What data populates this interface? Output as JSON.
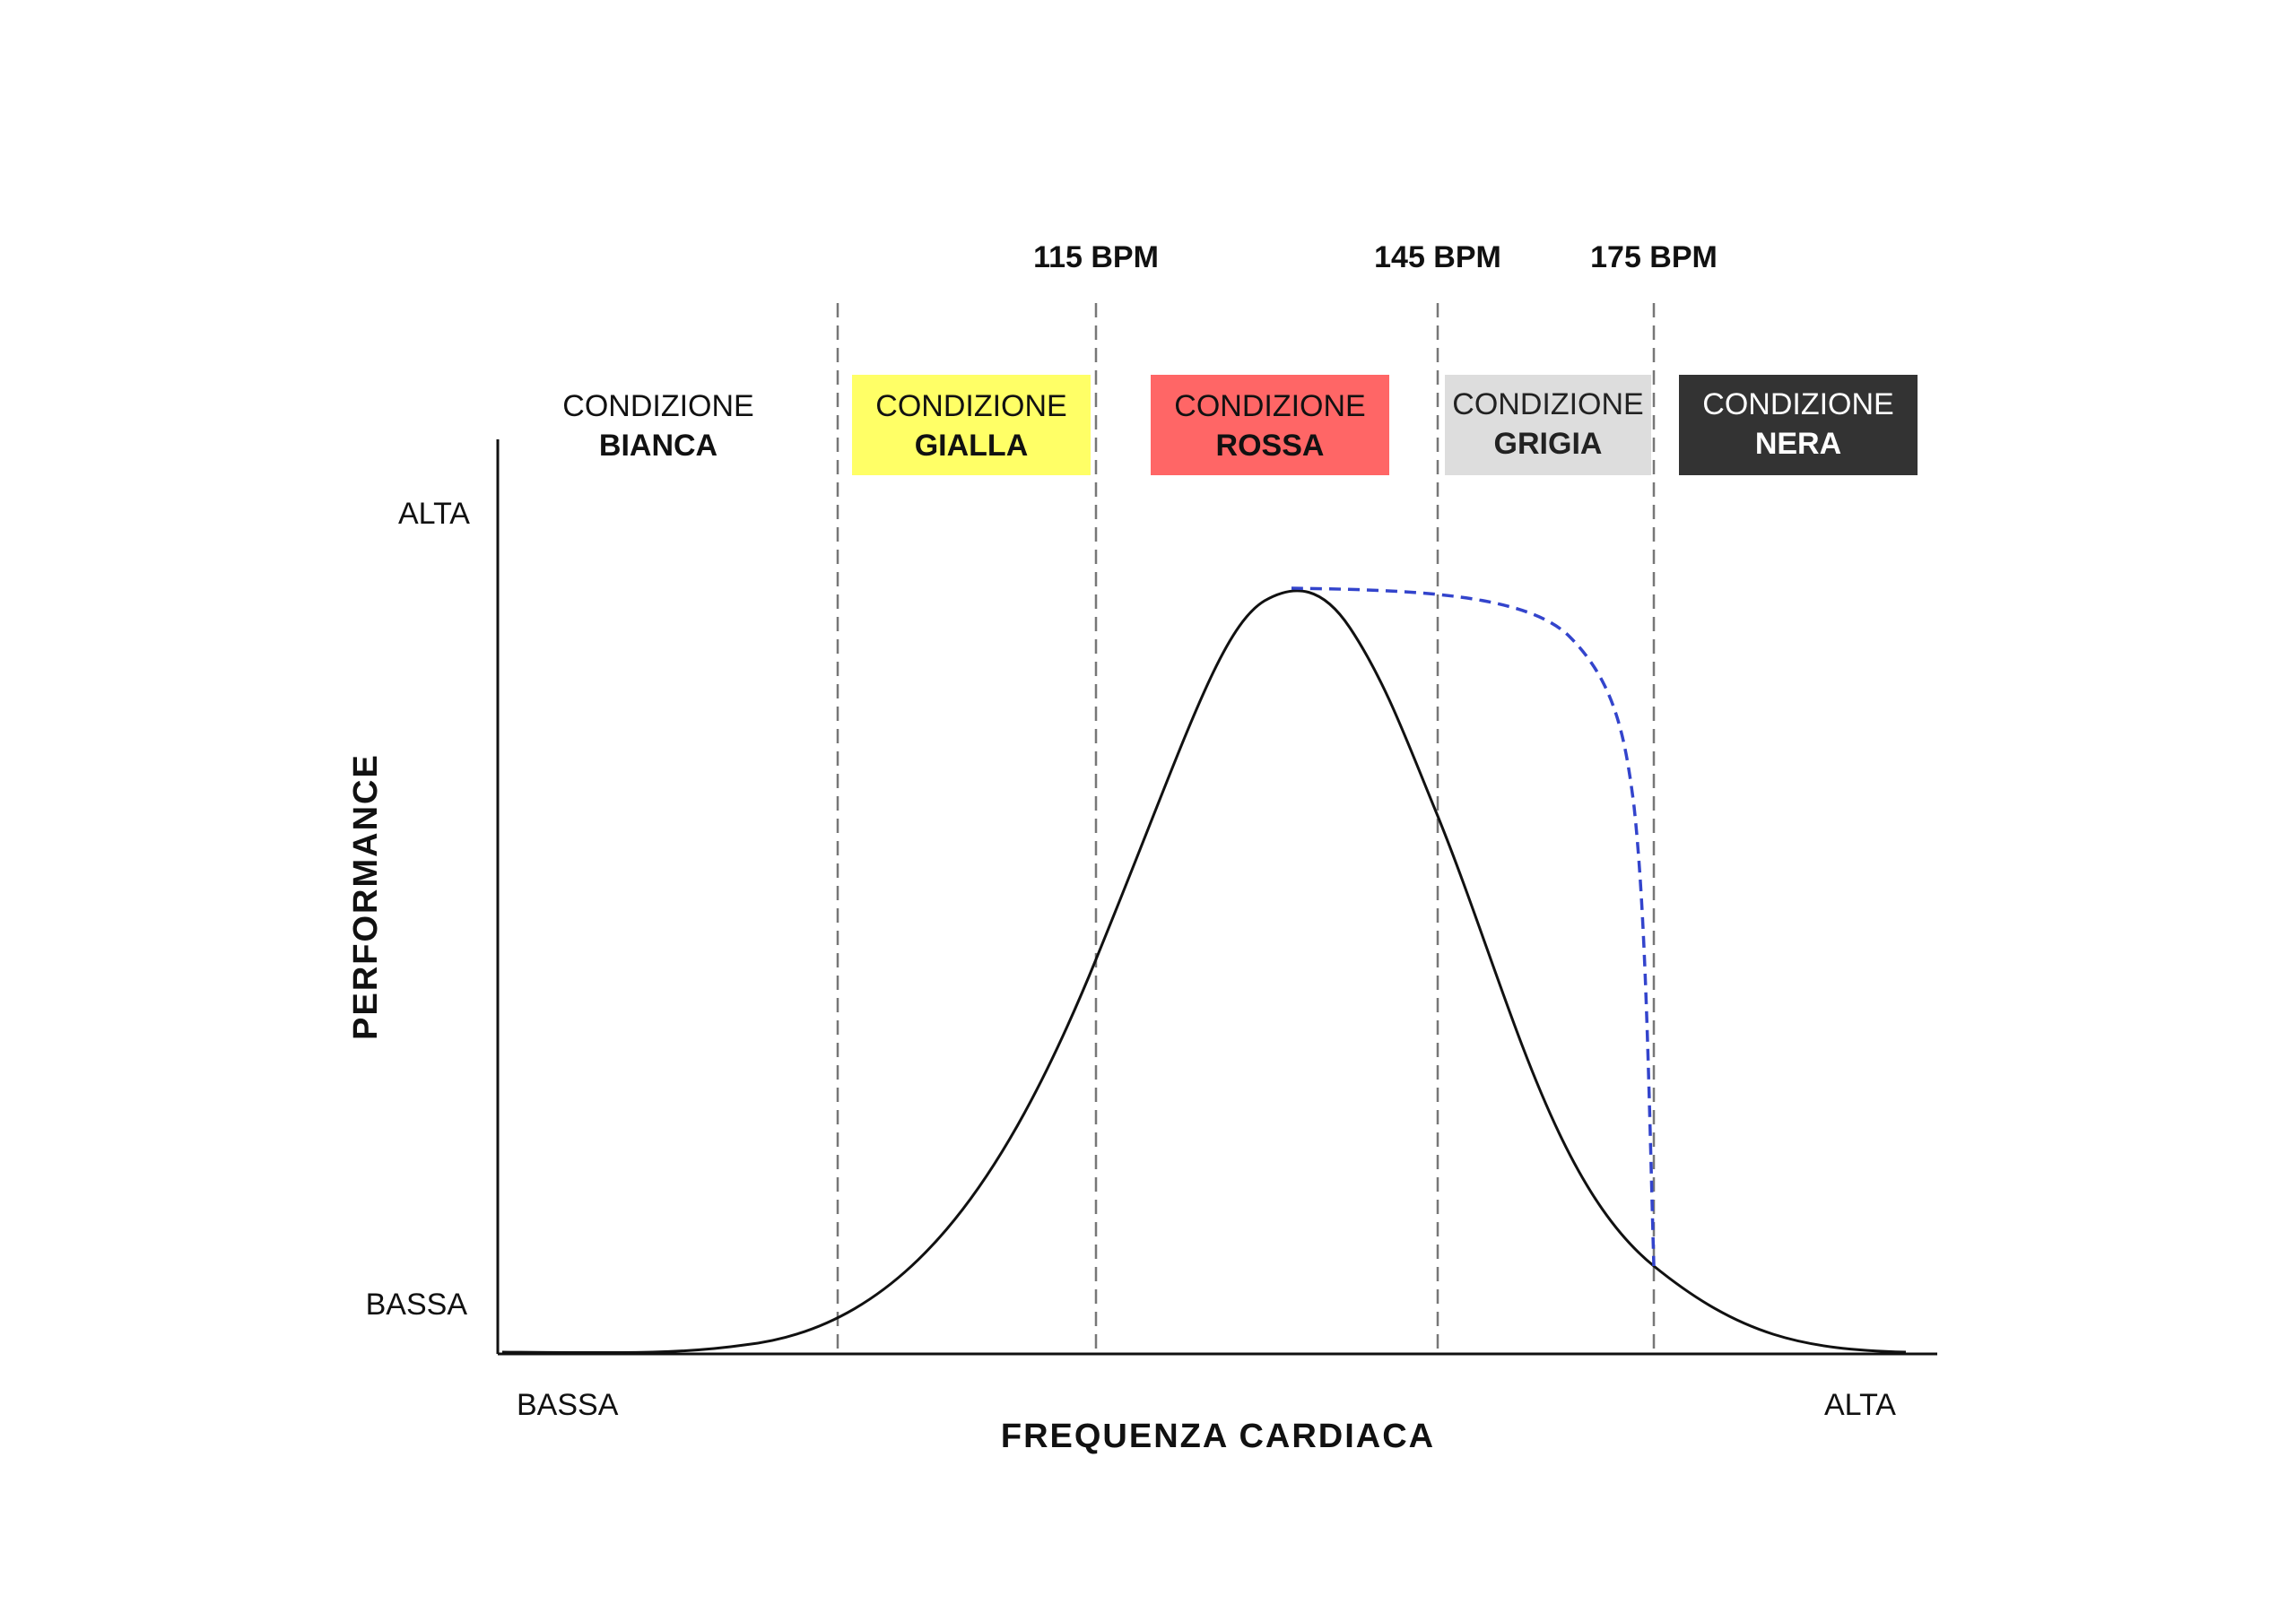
{
  "thresholds": [
    {
      "label": "115 BPM"
    },
    {
      "label": "145 BPM"
    },
    {
      "label": "175 BPM"
    }
  ],
  "zones": [
    {
      "line1": "CONDIZIONE",
      "line2": "BIANCA",
      "fill": "#ffffff",
      "text_color": "#111111"
    },
    {
      "line1": "CONDIZIONE",
      "line2": "GIALLA",
      "fill": "#ffff66",
      "text_color": "#111111"
    },
    {
      "line1": "CONDIZIONE",
      "line2": "ROSSA",
      "fill": "#ff6666",
      "text_color": "#111111"
    },
    {
      "line1": "CONDIZIONE",
      "line2": "GRIGIA",
      "fill": "#dddddd",
      "text_color": "#222222"
    },
    {
      "line1": "CONDIZIONE",
      "line2": "NERA",
      "fill": "#333333",
      "text_color": "#ffffff"
    }
  ],
  "y_axis": {
    "title": "PERFORMANCE",
    "high_label": "ALTA",
    "low_label": "BASSA"
  },
  "x_axis": {
    "title": "FREQUENZA CARDIACA",
    "low_label": "BASSA",
    "high_label": "ALTA"
  },
  "colors": {
    "curve": "#111111",
    "dashed_curve": "#3344cc",
    "divider": "#777777",
    "axis": "#111111"
  }
}
